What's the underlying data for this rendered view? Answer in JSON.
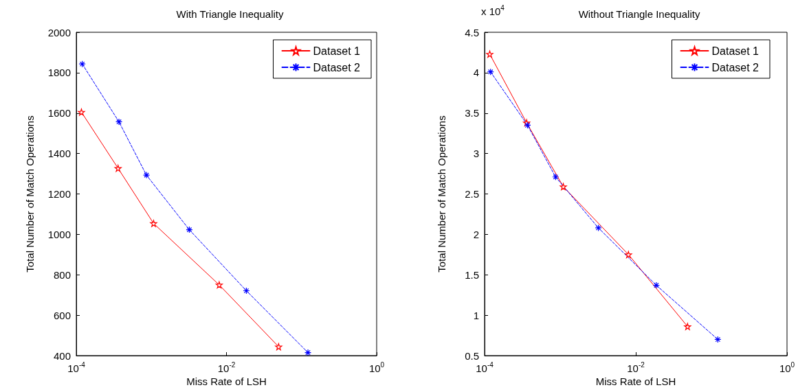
{
  "chart_data": [
    {
      "type": "line",
      "title": "With Triangle Inequality",
      "xlabel": "Miss Rate of LSH",
      "ylabel": "Total Number of Match Operations",
      "log": "x",
      "grid": false,
      "legend": "top right",
      "xlim": [
        0.0001,
        1
      ],
      "xticks": [
        {
          "value": 0.0001,
          "label": "10$^{-4}$"
        },
        {
          "value": 0.01,
          "label": "10$^{-2}$"
        },
        {
          "value": 1,
          "label": "10$^{0}$"
        }
      ],
      "ylim": [
        400,
        2000
      ],
      "yticks": [
        400,
        600,
        800,
        1000,
        1200,
        1400,
        1600,
        1800,
        2000
      ],
      "series": [
        {
          "name": "Dataset 1",
          "color": "#ff0000",
          "marker": "star",
          "line_style": "solid",
          "x": [
            0.000117,
            0.00036,
            0.00107,
            0.008,
            0.0495
          ],
          "values": [
            1605,
            1327,
            1054,
            750,
            444
          ]
        },
        {
          "name": "Dataset 2",
          "color": "#0000ff",
          "marker": "cross",
          "line_style": "dashed",
          "x": [
            0.00012,
            0.00037,
            0.00086,
            0.0032,
            0.0184,
            0.1216
          ],
          "values": [
            1843,
            1557,
            1293,
            1023,
            721,
            415
          ]
        }
      ]
    },
    {
      "type": "line",
      "title": "Without Triangle Inequality",
      "xlabel": "Miss Rate of LSH",
      "ylabel": "Total Number of Match Operations",
      "annotations": [
        "x 10$^{4}$"
      ],
      "log": "x",
      "grid": false,
      "legend": "top right",
      "xlim": [
        0.0001,
        1
      ],
      "xticks": [
        {
          "value": 0.0001,
          "label": "10$^{-4}$"
        },
        {
          "value": 0.01,
          "label": "10$^{-2}$"
        },
        {
          "value": 1,
          "label": "10$^{0}$"
        }
      ],
      "ylim": [
        0.5,
        4.5
      ],
      "yticks": [
        0.5,
        1,
        1.5,
        2,
        2.5,
        3,
        3.5,
        4,
        4.5
      ],
      "series": [
        {
          "name": "Dataset 1",
          "color": "#ff0000",
          "marker": "star",
          "line_style": "solid",
          "x": [
            0.000117,
            0.00036,
            0.0011,
            0.008,
            0.0484
          ],
          "values": [
            4.23,
            3.38,
            2.59,
            1.75,
            0.86
          ]
        },
        {
          "name": "Dataset 2",
          "color": "#0000ff",
          "marker": "cross",
          "line_style": "dashed",
          "x": [
            0.00012,
            0.00037,
            0.00087,
            0.0032,
            0.0187,
            0.1216
          ],
          "values": [
            4.01,
            3.35,
            2.71,
            2.08,
            1.37,
            0.7
          ]
        }
      ]
    }
  ]
}
